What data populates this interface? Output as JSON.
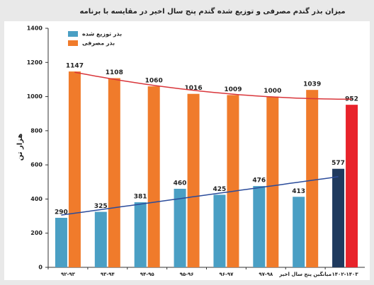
{
  "chart_data": {
    "type": "bar",
    "title": "میزان بذر گندم مصرفی و توزیع شده گندم پنج سال اخیر در مقایسه با برنامه",
    "y_label": "هزار تن",
    "categories": [
      "۹۲-۹۳",
      "۹۳-۹۴",
      "۹۴-۹۵",
      "۹۵-۹۶",
      "۹۶-۹۷",
      "۹۷-۹۸",
      "میانگین پنج سال اخیر",
      "۱۴۰۲-۱۴۰۳"
    ],
    "series": [
      {
        "name": "بذر توزیع شده",
        "color": "#4a9fc4",
        "colors": [
          "#4a9fc4",
          "#4a9fc4",
          "#4a9fc4",
          "#4a9fc4",
          "#4a9fc4",
          "#4a9fc4",
          "#4a9fc4",
          "#1f3a5e"
        ],
        "trendline": "linear",
        "trend_color": "#2b4c9b",
        "values": [
          290,
          325,
          381,
          460,
          425,
          476,
          413,
          577
        ]
      },
      {
        "name": "بذر مصرفی",
        "color": "#f07b2b",
        "colors": [
          "#f07b2b",
          "#f07b2b",
          "#f07b2b",
          "#f07b2b",
          "#f07b2b",
          "#f07b2b",
          "#f07b2b",
          "#e8232b"
        ],
        "trendline": "poly2",
        "trend_color": "#d9363b",
        "values": [
          1147,
          1108,
          1060,
          1016,
          1009,
          1000,
          1039,
          952
        ]
      }
    ],
    "ylim": [
      0,
      1400
    ],
    "yticks": [
      0,
      200,
      400,
      600,
      800,
      1000,
      1200,
      1400
    ],
    "grid": false,
    "legend": "top-left"
  }
}
